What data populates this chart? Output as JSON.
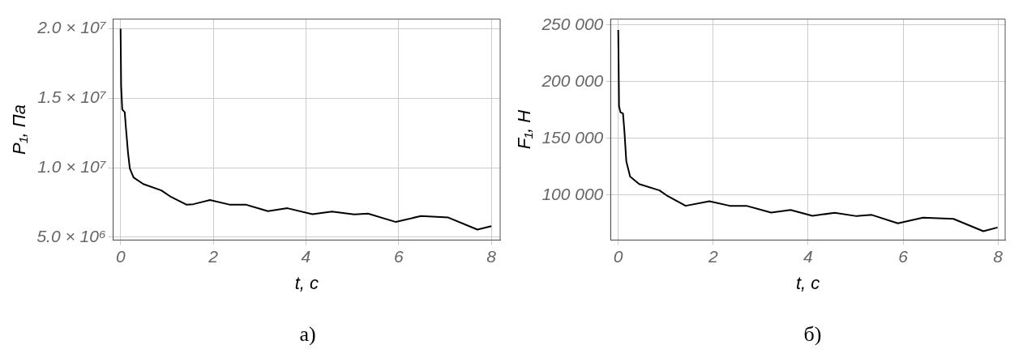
{
  "chart_data": [
    {
      "type": "line",
      "xlabel": "t, c",
      "ylabel": "P₁, Па",
      "annotations": [
        "а)"
      ],
      "xlim": [
        -0.16,
        8.19
      ],
      "xticks": [
        0,
        2,
        4,
        6,
        8
      ],
      "ylim": [
        4800000,
        20700000
      ],
      "yticks": [
        {
          "value": 5000000,
          "label": "5.0 × 10⁶"
        },
        {
          "value": 10000000,
          "label": "1.0 × 10⁷"
        },
        {
          "value": 15000000,
          "label": "1.5 × 10⁷"
        },
        {
          "value": 20000000,
          "label": "2.0 × 10⁷"
        }
      ],
      "grid": true,
      "legend": false,
      "marker": "none",
      "line_style": "solid",
      "series": [
        {
          "color": "#000000",
          "x": [
            0,
            0.012,
            0.036,
            0.09,
            0.11,
            0.16,
            0.2,
            0.28,
            0.49,
            0.88,
            1.09,
            1.42,
            1.57,
            1.93,
            2.35,
            2.7,
            3.18,
            3.6,
            4.14,
            4.56,
            5.04,
            5.34,
            5.94,
            6.48,
            7.07,
            7.7,
            8.0
          ],
          "values": [
            20000000,
            15900000,
            14200000,
            14000000,
            13100000,
            11100000,
            9940000,
            9300000,
            8830000,
            8370000,
            7900000,
            7350000,
            7380000,
            7680000,
            7350000,
            7350000,
            6880000,
            7090000,
            6660000,
            6850000,
            6640000,
            6700000,
            6100000,
            6530000,
            6420000,
            5550000,
            5800000
          ]
        }
      ]
    },
    {
      "type": "line",
      "xlabel": "t, c",
      "ylabel": "F₁, Н",
      "annotations": [
        "б)"
      ],
      "xlim": [
        -0.16,
        8.15
      ],
      "xticks": [
        0,
        2,
        4,
        6,
        8
      ],
      "ylim": [
        60200,
        255100
      ],
      "yticks": [
        {
          "value": 100000,
          "label": "100 000"
        },
        {
          "value": 150000,
          "label": "150 000"
        },
        {
          "value": 200000,
          "label": "200 000"
        },
        {
          "value": 250000,
          "label": "250 000"
        }
      ],
      "grid": true,
      "legend": false,
      "marker": "none",
      "line_style": "solid",
      "series": [
        {
          "color": "#000000",
          "x": [
            0,
            0.017,
            0.046,
            0.1,
            0.13,
            0.17,
            0.25,
            0.44,
            0.87,
            1.02,
            1.42,
            1.92,
            2.35,
            2.7,
            3.22,
            3.63,
            4.09,
            4.56,
            5.02,
            5.34,
            5.89,
            6.42,
            7.06,
            7.69,
            7.99
          ],
          "values": [
            245500,
            178400,
            172900,
            171800,
            156200,
            129600,
            116200,
            109600,
            104000,
            99600,
            90400,
            94400,
            90400,
            90400,
            84400,
            86700,
            81600,
            84200,
            81300,
            82400,
            74900,
            80000,
            78900,
            68000,
            71300
          ]
        }
      ]
    }
  ]
}
